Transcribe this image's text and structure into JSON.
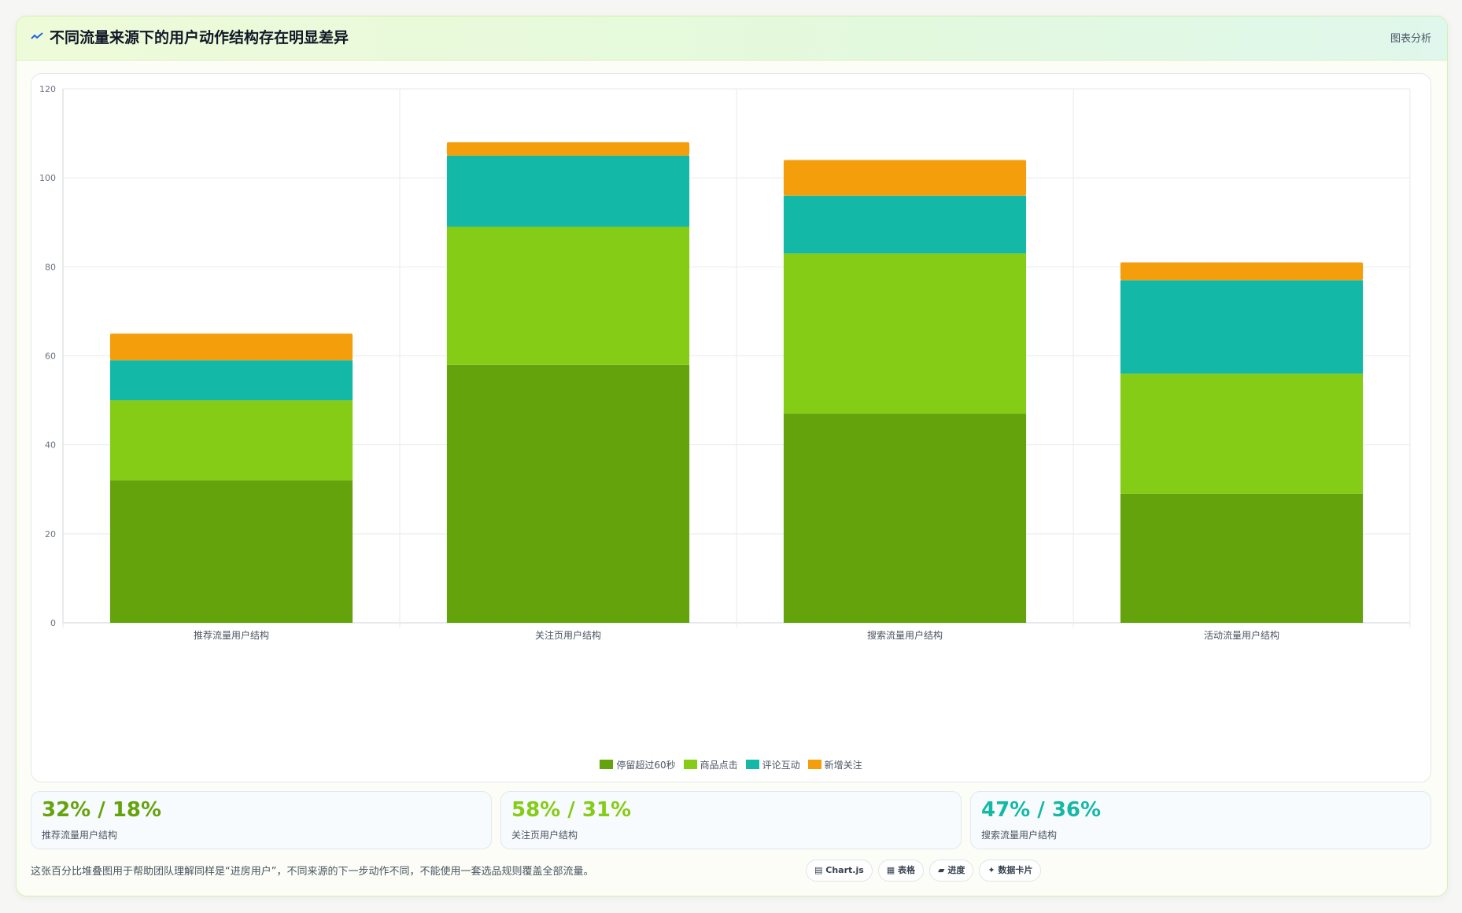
{
  "header": {
    "icon": "sparkline-icon",
    "title": "不同流量来源下的用户动作结构存在明显差异",
    "tag": "图表分析"
  },
  "chart_data": {
    "type": "bar",
    "stacked": true,
    "categories": [
      "推荐流量用户结构",
      "关注页用户结构",
      "搜索流量用户结构",
      "活动流量用户结构"
    ],
    "series": [
      {
        "name": "停留超过60秒",
        "color": "#65a30d",
        "values": [
          32,
          58,
          47,
          29
        ]
      },
      {
        "name": "商品点击",
        "color": "#84cc16",
        "values": [
          18,
          31,
          36,
          27
        ]
      },
      {
        "name": "评论互动",
        "color": "#14b8a6",
        "values": [
          9,
          16,
          13,
          21
        ]
      },
      {
        "name": "新增关注",
        "color": "#f59e0b",
        "values": [
          6,
          3,
          8,
          4
        ]
      }
    ],
    "ylim": [
      0,
      120
    ],
    "yticks": [
      0,
      20,
      40,
      60,
      80,
      100,
      120
    ],
    "grid": true,
    "legend": "bottom"
  },
  "kpis": [
    {
      "value": "32% / 18%",
      "label": "推荐流量用户结构",
      "color": "#65a30d"
    },
    {
      "value": "58% / 31%",
      "label": "关注页用户结构",
      "color": "#84cc16"
    },
    {
      "value": "47% / 36%",
      "label": "搜索流量用户结构",
      "color": "#14b8a6"
    }
  ],
  "note": "这张百分比堆叠图用于帮助团队理解同样是“进房用户”，不同来源的下一步动作不同，不能使用一套选品规则覆盖全部流量。",
  "chips": [
    {
      "icon": "chart-icon",
      "glyph": "▤",
      "label": "Chart.js"
    },
    {
      "icon": "table-icon",
      "glyph": "▦",
      "label": "表格"
    },
    {
      "icon": "progress-icon",
      "glyph": "▰",
      "label": "进度"
    },
    {
      "icon": "card-icon",
      "glyph": "✦",
      "label": "数据卡片"
    }
  ]
}
